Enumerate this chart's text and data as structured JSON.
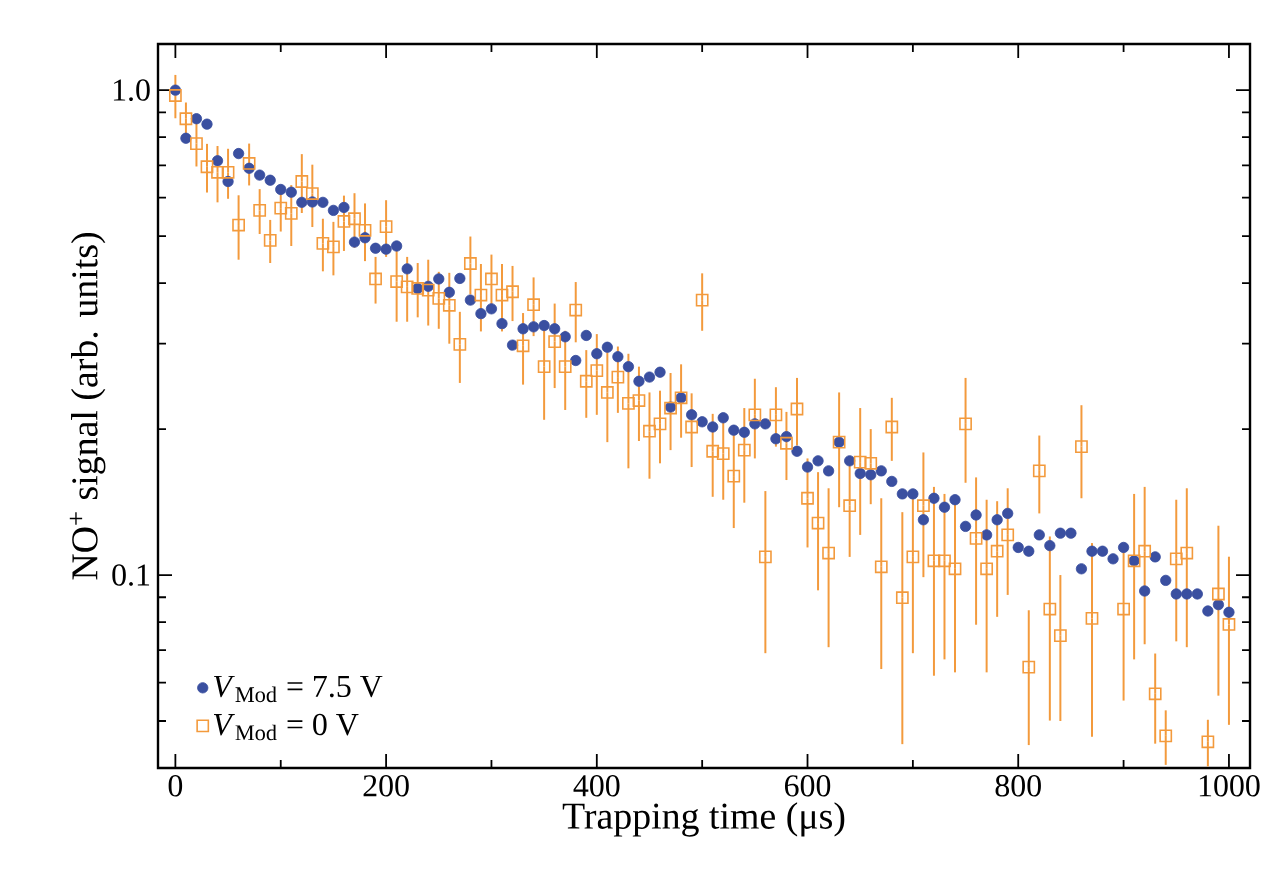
{
  "chart_data": {
    "type": "scatter",
    "xlabel": "Trapping time (μs)",
    "ylabel": "NO$^{+}$ signal (arb. units)",
    "log": "y",
    "xlim": [
      -16.5,
      1020
    ],
    "ylim": [
      0.04,
      1.245
    ],
    "xticks": [
      0,
      200,
      400,
      600,
      800,
      1000
    ],
    "yticks": [
      {
        "value": 1,
        "label": "1.0"
      },
      {
        "value": 0.1,
        "label": "0.1"
      }
    ],
    "legend": "bottom left",
    "grid": false,
    "series": [
      {
        "name": "*V*$_{Mod}$ = 7.5 V",
        "color": "#3a4fa0",
        "marker": "circle",
        "x": [
          0,
          10,
          20,
          30,
          40,
          50,
          60,
          70,
          80,
          90,
          100,
          110,
          120,
          130,
          140,
          150,
          160,
          170,
          180,
          190,
          200,
          210,
          220,
          230,
          240,
          250,
          260,
          270,
          280,
          290,
          300,
          310,
          320,
          330,
          340,
          350,
          360,
          370,
          380,
          390,
          400,
          410,
          420,
          430,
          440,
          450,
          460,
          470,
          480,
          490,
          500,
          510,
          520,
          530,
          540,
          550,
          560,
          570,
          580,
          590,
          600,
          610,
          620,
          630,
          640,
          650,
          660,
          670,
          680,
          690,
          700,
          710,
          720,
          730,
          740,
          750,
          760,
          770,
          780,
          790,
          800,
          810,
          820,
          830,
          840,
          850,
          860,
          870,
          880,
          890,
          900,
          910,
          920,
          930,
          940,
          950,
          960,
          970,
          980,
          990,
          1000
        ],
        "values": [
          1.0,
          0.796,
          0.873,
          0.851,
          0.715,
          0.648,
          0.74,
          0.69,
          0.668,
          0.652,
          0.624,
          0.616,
          0.587,
          0.588,
          0.587,
          0.565,
          0.573,
          0.486,
          0.496,
          0.472,
          0.47,
          0.477,
          0.428,
          0.39,
          0.394,
          0.408,
          0.383,
          0.409,
          0.369,
          0.346,
          0.354,
          0.33,
          0.298,
          0.322,
          0.325,
          0.327,
          0.322,
          0.31,
          0.277,
          0.312,
          0.286,
          0.295,
          0.282,
          0.269,
          0.251,
          0.256,
          0.262,
          0.222,
          0.232,
          0.214,
          0.207,
          0.202,
          0.211,
          0.199,
          0.197,
          0.205,
          0.205,
          0.191,
          0.193,
          0.18,
          0.167,
          0.172,
          0.164,
          0.188,
          0.172,
          0.162,
          0.161,
          0.164,
          0.156,
          0.147,
          0.147,
          0.13,
          0.144,
          0.138,
          0.143,
          0.126,
          0.133,
          0.121,
          0.13,
          0.134,
          0.114,
          0.112,
          0.121,
          0.115,
          0.122,
          0.122,
          0.103,
          0.112,
          0.112,
          0.108,
          0.114,
          0.107,
          0.0927,
          0.109,
          0.0975,
          0.0914,
          0.0914,
          0.0914,
          0.0843,
          0.0869,
          0.0838
        ]
      },
      {
        "name": "*V*$_{Mod}$ = 0 V",
        "color": "#f39a3c",
        "marker": "square",
        "x": [
          0,
          10,
          20,
          30,
          40,
          50,
          60,
          70,
          80,
          90,
          100,
          110,
          120,
          130,
          140,
          150,
          160,
          170,
          180,
          190,
          200,
          210,
          220,
          230,
          240,
          250,
          260,
          270,
          280,
          290,
          300,
          310,
          320,
          330,
          340,
          350,
          360,
          370,
          380,
          390,
          400,
          410,
          420,
          430,
          440,
          450,
          460,
          470,
          480,
          490,
          500,
          510,
          520,
          530,
          540,
          550,
          560,
          570,
          580,
          590,
          600,
          610,
          620,
          630,
          640,
          650,
          660,
          670,
          680,
          690,
          700,
          710,
          720,
          730,
          740,
          750,
          760,
          770,
          780,
          790,
          800,
          810,
          820,
          830,
          840,
          850,
          860,
          870,
          880,
          890,
          900,
          910,
          920,
          930,
          940,
          950,
          960,
          970,
          980,
          990,
          1000
        ],
        "values": [
          0.975,
          0.873,
          0.776,
          0.695,
          0.677,
          0.677,
          0.527,
          0.706,
          0.565,
          0.49,
          0.571,
          0.557,
          0.648,
          0.612,
          0.483,
          0.475,
          0.536,
          0.543,
          0.514,
          0.408,
          0.523,
          0.403,
          0.393,
          0.39,
          0.387,
          0.372,
          0.36,
          0.299,
          0.439,
          0.378,
          0.408,
          0.378,
          0.384,
          0.297,
          0.361,
          0.269,
          0.303,
          0.269,
          0.352,
          0.251,
          0.264,
          0.238,
          0.256,
          0.226,
          0.229,
          0.198,
          0.205,
          0.221,
          0.232,
          0.202,
          0.369,
          0.18,
          0.178,
          0.16,
          0.181,
          0.214,
          0.109,
          0.214,
          0.187,
          0.22,
          0.144,
          0.128,
          0.111,
          0.188,
          0.139,
          0.171,
          0.17,
          0.104,
          0.202,
          0.0898,
          0.109,
          0.139,
          0.107,
          0.107,
          0.103,
          0.205,
          0.119,
          0.103,
          0.112,
          0.121,
          null,
          0.0646,
          0.164,
          0.0851,
          0.075,
          null,
          0.184,
          0.0814,
          null,
          null,
          0.0851,
          0.107,
          0.112,
          0.0569,
          0.0466,
          0.108,
          0.111,
          null,
          0.0453,
          0.0914,
          0.0791
        ],
        "errors": [
          0.1,
          0.07,
          0.08,
          0.08,
          0.09,
          0.08,
          0.08,
          0.07,
          0.06,
          0.05,
          0.06,
          0.08,
          0.09,
          0.09,
          0.06,
          0.06,
          0.07,
          0.07,
          0.07,
          0.045,
          0.07,
          0.07,
          0.06,
          0.05,
          0.06,
          0.05,
          0.06,
          0.05,
          0.06,
          0.06,
          0.05,
          0.06,
          0.05,
          0.05,
          0.05,
          0.06,
          0.06,
          0.05,
          0.05,
          0.04,
          0.05,
          0.05,
          0.04,
          0.06,
          0.04,
          0.04,
          0.035,
          0.04,
          0.04,
          0.035,
          0.05,
          0.035,
          0.035,
          0.035,
          0.04,
          0.04,
          0.04,
          0.03,
          0.03,
          0.035,
          0.03,
          0.035,
          0.04,
          0.05,
          0.03,
          0.05,
          0.03,
          0.04,
          0.03,
          0.045,
          0.04,
          0.04,
          0.045,
          0.04,
          0.04,
          0.05,
          0.04,
          0.04,
          0.03,
          0.03,
          null,
          0.02,
          0.03,
          0.035,
          0.025,
          null,
          0.04,
          0.035,
          null,
          null,
          0.03,
          0.04,
          0.04,
          0.012,
          0.006,
          0.035,
          0.04,
          null,
          0.005,
          0.035,
          0.03
        ]
      }
    ]
  }
}
